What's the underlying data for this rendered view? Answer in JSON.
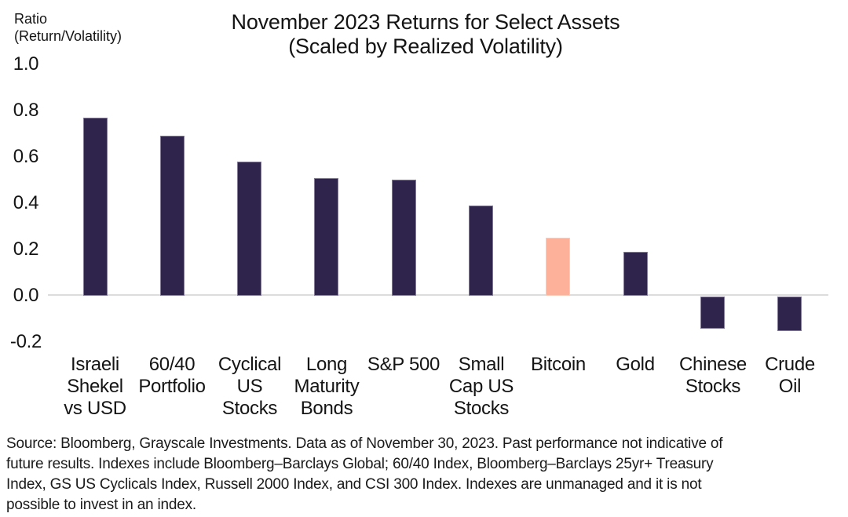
{
  "chart_data": {
    "type": "bar",
    "title_lines": [
      "November 2023 Returns for Select Assets",
      "(Scaled by Realized Volatility)"
    ],
    "ylabel_lines": [
      "Ratio",
      "(Return/Volatility)"
    ],
    "xlabel": "",
    "categories": [
      "Israeli Shekel vs USD",
      "60/40 Portfolio",
      "Cyclical US Stocks",
      "Long Maturity Bonds",
      "S&P 500",
      "Small Cap US Stocks",
      "Bitcoin",
      "Gold",
      "Chinese Stocks",
      "Crude Oil"
    ],
    "category_label_lines": [
      [
        "Israeli",
        "Shekel",
        "vs USD"
      ],
      [
        "60/40",
        "Portfolio"
      ],
      [
        "Cyclical",
        "US",
        "Stocks"
      ],
      [
        "Long",
        "Maturity",
        "Bonds"
      ],
      [
        "S&P 500"
      ],
      [
        "Small",
        "Cap US",
        "Stocks"
      ],
      [
        "Bitcoin"
      ],
      [
        "Gold"
      ],
      [
        "Chinese",
        "Stocks"
      ],
      [
        "Crude",
        "Oil"
      ]
    ],
    "values": [
      0.77,
      0.69,
      0.58,
      0.51,
      0.5,
      0.39,
      0.25,
      0.19,
      -0.14,
      -0.15
    ],
    "highlight_index": 6,
    "highlight_category": "Bitcoin",
    "yticks": [
      1.0,
      0.8,
      0.6,
      0.4,
      0.2,
      0.0,
      -0.2
    ],
    "ytick_labels": [
      "1.0",
      "0.8",
      "0.6",
      "0.4",
      "0.2",
      "0.0",
      "-0.2"
    ],
    "ylim": [
      -0.28,
      1.0
    ],
    "grid": false,
    "legend": false,
    "bar_color": "#2e244c",
    "highlight_color": "#fdb19b",
    "axis_line_color": "#dcdcdc"
  },
  "source_note": {
    "lines": [
      "Source: Bloomberg, Grayscale Investments. Data as of November 30, 2023. Past performance not indicative of",
      "future results. Indexes include Bloomberg–Barclays Global; 60/40 Index, Bloomberg–Barclays 25yr+ Treasury",
      "Index, GS US Cyclicals Index, Russell 2000 Index, and CSI 300 Index. Indexes are unmanaged and it is not",
      "possible to invest in an index."
    ]
  }
}
